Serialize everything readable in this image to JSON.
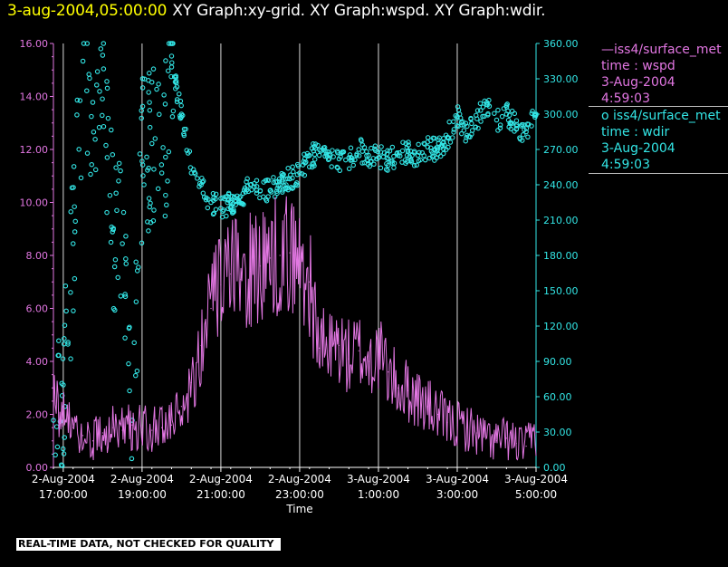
{
  "title": {
    "timestamp": "3-aug-2004,05:00:00",
    "graphs": "XY Graph:xy-grid.  XY Graph:wspd.  XY Graph:wdir."
  },
  "legend": {
    "wspd": {
      "name": "iss4/surface_met",
      "field": "time : wspd",
      "date": "3-Aug-2004",
      "time": "4:59:03",
      "color": "#e377e3"
    },
    "wdir": {
      "name": "iss4/surface_met",
      "field": "time : wdir",
      "date": "3-Aug-2004",
      "time": "4:59:03",
      "color": "#33e6e6"
    }
  },
  "footer": {
    "quality_note": "REAL-TIME DATA, NOT CHECKED FOR QUALITY"
  },
  "chart_data": {
    "type": "line",
    "xlabel": "Time",
    "xlim": [
      "2004-08-02T16:45",
      "2004-08-03T05:00"
    ],
    "grid": "vertical at major ticks",
    "x_ticks": [
      {
        "date": "2-Aug-2004",
        "time": "17:00:00"
      },
      {
        "date": "2-Aug-2004",
        "time": "19:00:00"
      },
      {
        "date": "2-Aug-2004",
        "time": "21:00:00"
      },
      {
        "date": "2-Aug-2004",
        "time": "23:00:00"
      },
      {
        "date": "3-Aug-2004",
        "time": "1:00:00"
      },
      {
        "date": "3-Aug-2004",
        "time": "3:00:00"
      },
      {
        "date": "3-Aug-2004",
        "time": "5:00:00"
      }
    ],
    "y_left": {
      "ylim": [
        0,
        16
      ],
      "ticks": [
        "0.00",
        "2.00",
        "4.00",
        "6.00",
        "8.00",
        "10.00",
        "12.00",
        "14.00",
        "16.00"
      ],
      "color": "#e377e3"
    },
    "y_right": {
      "ylim": [
        0,
        360
      ],
      "ticks": [
        "0.00",
        "30.00",
        "60.00",
        "90.00",
        "120.00",
        "150.00",
        "180.00",
        "210.00",
        "240.00",
        "270.00",
        "300.00",
        "330.00",
        "360.00"
      ],
      "color": "#33e6e6"
    },
    "series": [
      {
        "field": "wspd",
        "axis": "left",
        "style": "line",
        "color": "#e377e3",
        "x": [
          "2004-08-02T16:45",
          "2004-08-02T17:00",
          "2004-08-02T17:15",
          "2004-08-02T17:30",
          "2004-08-02T17:45",
          "2004-08-02T18:00",
          "2004-08-02T18:15",
          "2004-08-02T18:30",
          "2004-08-02T18:45",
          "2004-08-02T19:00",
          "2004-08-02T19:15",
          "2004-08-02T19:30",
          "2004-08-02T19:45",
          "2004-08-02T20:00",
          "2004-08-02T20:15",
          "2004-08-02T20:30",
          "2004-08-02T20:45",
          "2004-08-02T21:00",
          "2004-08-02T21:15",
          "2004-08-02T21:30",
          "2004-08-02T21:45",
          "2004-08-02T22:00",
          "2004-08-02T22:15",
          "2004-08-02T22:30",
          "2004-08-02T22:45",
          "2004-08-02T23:00",
          "2004-08-02T23:15",
          "2004-08-02T23:30",
          "2004-08-02T23:45",
          "2004-08-03T00:00",
          "2004-08-03T00:15",
          "2004-08-03T00:30",
          "2004-08-03T00:45",
          "2004-08-03T01:00",
          "2004-08-03T01:15",
          "2004-08-03T01:30",
          "2004-08-03T01:45",
          "2004-08-03T02:00",
          "2004-08-03T02:15",
          "2004-08-03T02:30",
          "2004-08-03T02:45",
          "2004-08-03T03:00",
          "2004-08-03T03:15",
          "2004-08-03T03:30",
          "2004-08-03T03:45",
          "2004-08-03T04:00",
          "2004-08-03T04:15",
          "2004-08-03T04:30",
          "2004-08-03T04:45",
          "2004-08-03T05:00"
        ],
        "values": [
          2.6,
          1.9,
          1.5,
          1.2,
          1.0,
          1.3,
          1.5,
          1.4,
          1.6,
          1.5,
          1.4,
          1.5,
          1.6,
          2.3,
          3.2,
          4.6,
          6.0,
          6.9,
          7.3,
          7.1,
          7.4,
          7.6,
          7.9,
          8.0,
          8.1,
          7.7,
          7.0,
          4.5,
          4.4,
          4.6,
          4.1,
          4.4,
          4.0,
          4.3,
          3.6,
          3.0,
          2.9,
          2.6,
          2.3,
          2.0,
          1.7,
          1.6,
          1.5,
          1.3,
          1.1,
          1.0,
          1.1,
          0.9,
          0.8,
          1.3
        ]
      },
      {
        "field": "wdir",
        "axis": "right",
        "style": "points",
        "color": "#33e6e6",
        "x": [
          "2004-08-02T16:45",
          "2004-08-02T17:00",
          "2004-08-02T17:15",
          "2004-08-02T17:30",
          "2004-08-02T17:45",
          "2004-08-02T18:00",
          "2004-08-02T18:15",
          "2004-08-02T18:30",
          "2004-08-02T18:45",
          "2004-08-02T19:00",
          "2004-08-02T19:15",
          "2004-08-02T19:30",
          "2004-08-02T19:45",
          "2004-08-02T20:00",
          "2004-08-02T20:15",
          "2004-08-02T20:30",
          "2004-08-02T20:45",
          "2004-08-02T21:00",
          "2004-08-02T21:15",
          "2004-08-02T21:30",
          "2004-08-02T21:45",
          "2004-08-02T22:00",
          "2004-08-02T22:15",
          "2004-08-02T22:30",
          "2004-08-02T22:45",
          "2004-08-02T23:00",
          "2004-08-02T23:15",
          "2004-08-02T23:30",
          "2004-08-02T23:45",
          "2004-08-03T00:00",
          "2004-08-03T00:15",
          "2004-08-03T00:30",
          "2004-08-03T00:45",
          "2004-08-03T01:00",
          "2004-08-03T01:15",
          "2004-08-03T01:30",
          "2004-08-03T01:45",
          "2004-08-03T02:00",
          "2004-08-03T02:15",
          "2004-08-03T02:30",
          "2004-08-03T02:45",
          "2004-08-03T03:00",
          "2004-08-03T03:15",
          "2004-08-03T03:30",
          "2004-08-03T03:45",
          "2004-08-03T04:00",
          "2004-08-03T04:15",
          "2004-08-03T04:30",
          "2004-08-03T04:45",
          "2004-08-03T05:00"
        ],
        "values": [
          40,
          70,
          190,
          345,
          310,
          350,
          200,
          190,
          40,
          260,
          275,
          250,
          340,
          300,
          250,
          240,
          225,
          220,
          225,
          230,
          240,
          235,
          235,
          240,
          245,
          250,
          265,
          265,
          262,
          262,
          263,
          270,
          265,
          263,
          262,
          265,
          268,
          265,
          272,
          270,
          280,
          298,
          282,
          296,
          310,
          295,
          300,
          290,
          285,
          300
        ]
      }
    ]
  }
}
